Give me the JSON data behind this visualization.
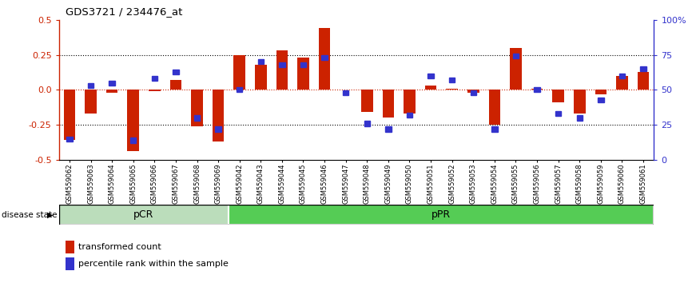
{
  "title": "GDS3721 / 234476_at",
  "samples": [
    "GSM559062",
    "GSM559063",
    "GSM559064",
    "GSM559065",
    "GSM559066",
    "GSM559067",
    "GSM559068",
    "GSM559069",
    "GSM559042",
    "GSM559043",
    "GSM559044",
    "GSM559045",
    "GSM559046",
    "GSM559047",
    "GSM559048",
    "GSM559049",
    "GSM559050",
    "GSM559051",
    "GSM559052",
    "GSM559053",
    "GSM559054",
    "GSM559055",
    "GSM559056",
    "GSM559057",
    "GSM559058",
    "GSM559059",
    "GSM559060",
    "GSM559061"
  ],
  "red_values": [
    -0.36,
    -0.17,
    -0.02,
    -0.44,
    -0.01,
    0.07,
    -0.26,
    -0.37,
    0.25,
    0.18,
    0.28,
    0.23,
    0.44,
    0.0,
    -0.16,
    -0.2,
    -0.17,
    0.03,
    0.01,
    -0.02,
    -0.25,
    0.3,
    0.01,
    -0.09,
    -0.17,
    -0.03,
    0.1,
    0.13
  ],
  "blue_values": [
    15,
    53,
    55,
    14,
    58,
    63,
    30,
    22,
    50,
    70,
    68,
    68,
    73,
    48,
    26,
    22,
    32,
    60,
    57,
    48,
    22,
    74,
    50,
    33,
    30,
    43,
    60,
    65
  ],
  "pCR_count": 8,
  "pPR_count": 20,
  "ylim_left": [
    -0.5,
    0.5
  ],
  "ylim_right": [
    0,
    100
  ],
  "yticks_left": [
    -0.5,
    -0.25,
    0.0,
    0.25,
    0.5
  ],
  "yticks_right": [
    0,
    25,
    50,
    75,
    100
  ],
  "red_color": "#CC2200",
  "blue_color": "#3333CC",
  "pCR_color": "#BBDDBB",
  "pPR_color": "#55CC55",
  "bar_width": 0.55
}
